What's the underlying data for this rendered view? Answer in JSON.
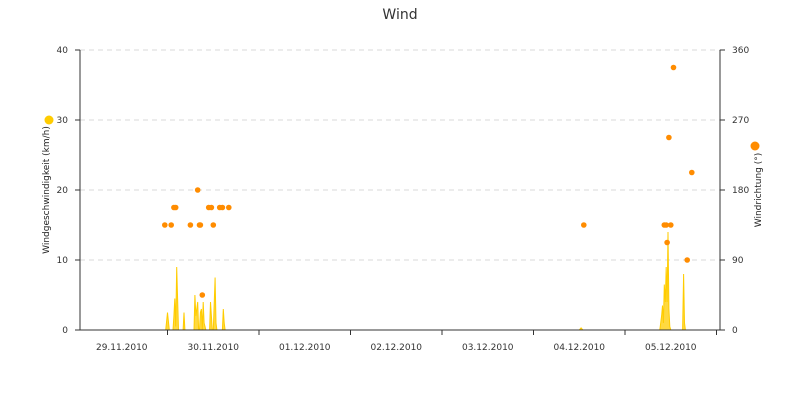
{
  "chart_data": {
    "type": "line",
    "title": "Wind",
    "grid": true,
    "x_ticks": [
      "29.11.2010",
      "30.11.2010",
      "01.12.2010",
      "02.12.2010",
      "03.12.2010",
      "04.12.2010",
      "05.12.2010"
    ],
    "y_left": {
      "label": "Windgeschwindigkeit (km/h)",
      "ticks": [
        0,
        10,
        20,
        30,
        40
      ],
      "range": [
        0,
        40
      ]
    },
    "y_right": {
      "label": "Windrichtung (°)",
      "ticks": [
        0,
        90,
        180,
        270,
        360
      ],
      "range": [
        0,
        360
      ]
    },
    "series": [
      {
        "type": "area",
        "axis": "left",
        "color": "#ffcc00",
        "x_days": [
          0.98,
          1.0,
          1.02,
          1.06,
          1.07,
          1.08,
          1.09,
          1.1,
          1.11,
          1.12,
          1.13,
          1.17,
          1.18,
          1.19,
          1.2,
          1.29,
          1.3,
          1.31,
          1.33,
          1.34,
          1.35,
          1.36,
          1.37,
          1.38,
          1.39,
          1.4,
          1.42,
          1.43,
          1.44,
          1.45,
          1.46,
          1.47,
          1.48,
          1.49,
          1.5,
          1.52,
          1.53,
          1.54,
          1.55,
          1.56,
          1.57,
          1.58,
          1.6,
          1.61,
          1.62,
          1.63,
          1.64,
          1.66,
          1.67,
          1.68,
          1.69,
          1.7,
          5.5,
          5.52,
          5.54,
          6.38,
          6.4,
          6.41,
          6.42,
          6.43,
          6.44,
          6.45,
          6.46,
          6.47,
          6.48,
          6.49,
          6.5,
          6.51,
          6.52,
          6.53,
          6.54,
          6.55,
          6.56,
          6.58,
          6.6,
          6.62,
          6.63,
          6.64,
          6.65,
          6.66,
          6.67
        ],
        "values": [
          0,
          2.5,
          0,
          0,
          2,
          4.5,
          0.5,
          9,
          4.5,
          0,
          0,
          0,
          2.5,
          0,
          0,
          0,
          5,
          2,
          4,
          0,
          0,
          2.5,
          3,
          0,
          4,
          1,
          0,
          0,
          0,
          0,
          0,
          4,
          2,
          0,
          0,
          7.5,
          1,
          0,
          0,
          0,
          0,
          0,
          0,
          3,
          1,
          0,
          0,
          0,
          0,
          0,
          0,
          0,
          0,
          0.3,
          0,
          0,
          2,
          3.5,
          1,
          6.5,
          4,
          9,
          4,
          14,
          3,
          0.5,
          0,
          0,
          0,
          0,
          0,
          0,
          0,
          0,
          0,
          0,
          0,
          8,
          1,
          0,
          0
        ]
      },
      {
        "type": "scatter",
        "axis": "right",
        "color": "#ff8c00",
        "x_days": [
          0.97,
          1.04,
          1.07,
          1.09,
          1.25,
          1.33,
          1.35,
          1.36,
          1.38,
          1.45,
          1.48,
          1.5,
          1.57,
          1.6,
          1.67,
          5.55,
          6.43,
          6.45,
          6.46,
          6.48,
          6.5,
          6.53,
          6.68,
          6.73
        ],
        "values": [
          135,
          135,
          157.5,
          157.5,
          135,
          180,
          135,
          135,
          45,
          157.5,
          157.5,
          135,
          157.5,
          157.5,
          157.5,
          135,
          135,
          135,
          112.5,
          247.5,
          135,
          337.5,
          90,
          202.5
        ]
      }
    ]
  }
}
